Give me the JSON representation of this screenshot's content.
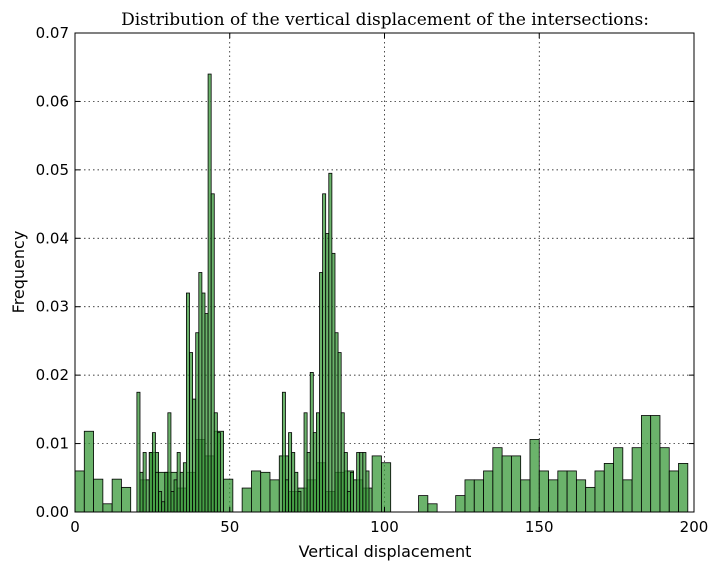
{
  "chart_data": {
    "type": "bar",
    "title": "Distribution of the vertical displacement of the intersections:",
    "xlabel": "Vertical displacement",
    "ylabel": "Frequency",
    "xlim": [
      0,
      200
    ],
    "ylim": [
      0,
      0.07
    ],
    "grid": true,
    "bar_color": "#3a9a3a",
    "xticks": [
      "0",
      "50",
      "100",
      "150",
      "200"
    ],
    "yticks": [
      "0.00",
      "0.01",
      "0.02",
      "0.03",
      "0.04",
      "0.05",
      "0.06",
      "0.07"
    ],
    "series": [
      {
        "bin_width": 3.0,
        "bars": [
          [
            0.0,
            0.006
          ],
          [
            3.0,
            0.0118
          ],
          [
            6.0,
            0.0048
          ],
          [
            9.0,
            0.0012
          ],
          [
            12.0,
            0.0048
          ],
          [
            15.0,
            0.0036
          ],
          [
            21.0,
            0.0047
          ],
          [
            24.0,
            0.0087
          ],
          [
            27.0,
            0.0058
          ],
          [
            30.0,
            0.0058
          ],
          [
            33.0,
            0.0035
          ],
          [
            36.0,
            0.0058
          ],
          [
            39.0,
            0.0106
          ],
          [
            42.0,
            0.0082
          ],
          [
            45.0,
            0.0118
          ],
          [
            48.0,
            0.0048
          ],
          [
            54.0,
            0.0035
          ],
          [
            57.0,
            0.006
          ],
          [
            60.0,
            0.0058
          ],
          [
            63.0,
            0.0047
          ],
          [
            66.0,
            0.0082
          ],
          [
            69.0,
            0.003
          ],
          [
            72.0,
            0.0035
          ],
          [
            75.0,
            0.0047
          ],
          [
            78.0,
            0.0072
          ],
          [
            81.0,
            0.003
          ],
          [
            84.0,
            0.0058
          ],
          [
            87.0,
            0.006
          ],
          [
            90.0,
            0.0047
          ],
          [
            93.0,
            0.0035
          ],
          [
            96.0,
            0.0082
          ],
          [
            99.0,
            0.0072
          ],
          [
            111.0,
            0.0024
          ],
          [
            114.0,
            0.0012
          ],
          [
            123.0,
            0.0024
          ],
          [
            126.0,
            0.0047
          ],
          [
            129.0,
            0.0047
          ],
          [
            132.0,
            0.006
          ],
          [
            135.0,
            0.0094
          ],
          [
            138.0,
            0.0082
          ],
          [
            141.0,
            0.0082
          ],
          [
            144.0,
            0.0047
          ],
          [
            147.0,
            0.0106
          ],
          [
            150.0,
            0.006
          ],
          [
            153.0,
            0.0047
          ],
          [
            156.0,
            0.006
          ],
          [
            159.0,
            0.006
          ],
          [
            162.0,
            0.0047
          ],
          [
            165.0,
            0.0036
          ],
          [
            168.0,
            0.006
          ],
          [
            171.0,
            0.0071
          ],
          [
            174.0,
            0.0094
          ],
          [
            177.0,
            0.0047
          ],
          [
            180.0,
            0.0094
          ],
          [
            183.0,
            0.0141
          ],
          [
            186.0,
            0.0141
          ],
          [
            189.0,
            0.0094
          ],
          [
            192.0,
            0.006
          ],
          [
            195.0,
            0.0071
          ]
        ]
      },
      {
        "bin_width": 1.0,
        "bars": [
          [
            20.0,
            0.0175
          ],
          [
            21.0,
            0.0058
          ],
          [
            22.0,
            0.0087
          ],
          [
            24.0,
            0.0087
          ],
          [
            25.0,
            0.0116
          ],
          [
            26.0,
            0.0058
          ],
          [
            27.0,
            0.003
          ],
          [
            28.0,
            0.0015
          ],
          [
            29.0,
            0.0058
          ],
          [
            30.0,
            0.0145
          ],
          [
            31.0,
            0.003
          ],
          [
            32.0,
            0.0047
          ],
          [
            33.0,
            0.0087
          ],
          [
            34.0,
            0.0058
          ],
          [
            35.0,
            0.0072
          ],
          [
            36.0,
            0.032
          ],
          [
            37.0,
            0.0233
          ],
          [
            38.0,
            0.0165
          ],
          [
            39.0,
            0.0262
          ],
          [
            40.0,
            0.035
          ],
          [
            41.0,
            0.032
          ],
          [
            42.0,
            0.029
          ],
          [
            43.0,
            0.064
          ],
          [
            44.0,
            0.0465
          ],
          [
            45.0,
            0.0145
          ],
          [
            46.0,
            0.0116
          ],
          [
            67.0,
            0.0175
          ],
          [
            68.0,
            0.0047
          ],
          [
            69.0,
            0.0116
          ],
          [
            70.0,
            0.0087
          ],
          [
            71.0,
            0.0058
          ],
          [
            72.0,
            0.003
          ],
          [
            74.0,
            0.0145
          ],
          [
            75.0,
            0.0087
          ],
          [
            76.0,
            0.0204
          ],
          [
            77.0,
            0.0116
          ],
          [
            78.0,
            0.0145
          ],
          [
            79.0,
            0.035
          ],
          [
            80.0,
            0.0465
          ],
          [
            81.0,
            0.0407
          ],
          [
            82.0,
            0.0495
          ],
          [
            83.0,
            0.0378
          ],
          [
            84.0,
            0.0262
          ],
          [
            85.0,
            0.0233
          ],
          [
            86.0,
            0.0145
          ],
          [
            87.0,
            0.0087
          ],
          [
            88.0,
            0.003
          ],
          [
            89.0,
            0.0058
          ],
          [
            91.0,
            0.0087
          ],
          [
            92.0,
            0.0087
          ],
          [
            93.0,
            0.0087
          ],
          [
            94.0,
            0.006
          ]
        ]
      }
    ]
  }
}
